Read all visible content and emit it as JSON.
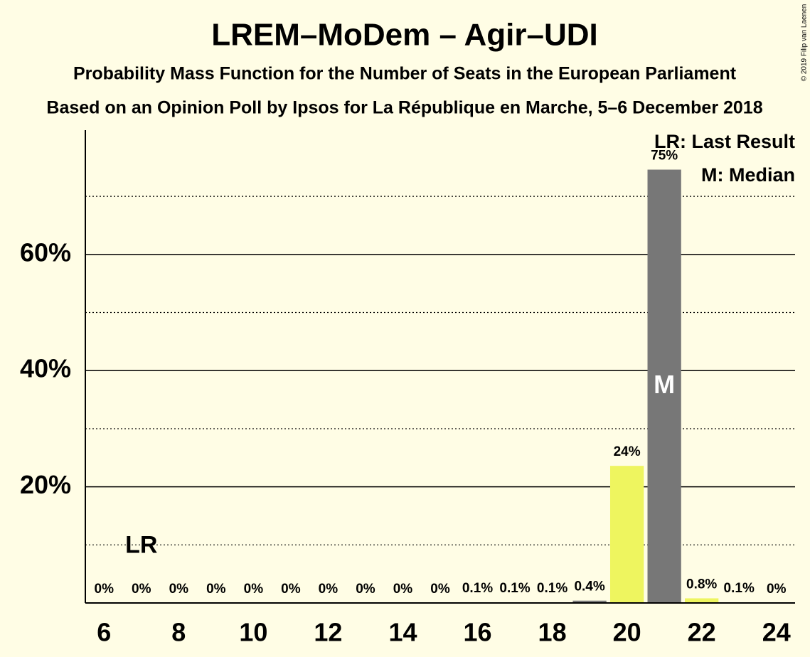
{
  "chart_data": {
    "type": "bar",
    "title": "LREM–MoDem – Agir–UDI",
    "subtitle": "Probability Mass Function for the Number of Seats in the European Parliament",
    "subtitle2": "Based on an Opinion Poll by Ipsos for La République en Marche, 5–6 December 2018",
    "copyright": "© 2019 Filip van Laenen",
    "x": [
      6,
      7,
      8,
      9,
      10,
      11,
      12,
      13,
      14,
      15,
      16,
      17,
      18,
      19,
      20,
      21,
      22,
      23,
      24
    ],
    "values": [
      0,
      0,
      0,
      0,
      0,
      0,
      0,
      0,
      0,
      0,
      0.1,
      0.1,
      0.1,
      0.4,
      23.6,
      74.6,
      0.8,
      0.1,
      0
    ],
    "value_labels": [
      "0%",
      "0%",
      "0%",
      "0%",
      "0%",
      "0%",
      "0%",
      "0%",
      "0%",
      "0%",
      "0.1%",
      "0.1%",
      "0.1%",
      "0.4%",
      "24%",
      "75%",
      "0.8%",
      "0.1%",
      "0%"
    ],
    "colors": [
      "#777777",
      "#777777",
      "#777777",
      "#777777",
      "#777777",
      "#777777",
      "#777777",
      "#777777",
      "#777777",
      "#777777",
      "#777777",
      "#777777",
      "#777777",
      "#777777",
      "#eef55f",
      "#777777",
      "#eef55f",
      "#777777",
      "#777777"
    ],
    "xlim": [
      5.5,
      24.5
    ],
    "xticks": [
      6,
      8,
      10,
      12,
      14,
      16,
      18,
      20,
      22,
      24
    ],
    "ylim": [
      0,
      81.4
    ],
    "yticks": [
      {
        "value": 20,
        "label": "20%"
      },
      {
        "value": 40,
        "label": "40%"
      },
      {
        "value": 60,
        "label": "60%"
      }
    ],
    "minor_yticks": [
      10,
      30,
      50,
      70
    ],
    "grid": true,
    "annotations": [
      {
        "text": "LR",
        "x": 7
      },
      {
        "text": "M",
        "x": 21
      }
    ],
    "legend": [
      "LR: Last Result",
      "M: Median"
    ],
    "legend_position": "top-right"
  }
}
